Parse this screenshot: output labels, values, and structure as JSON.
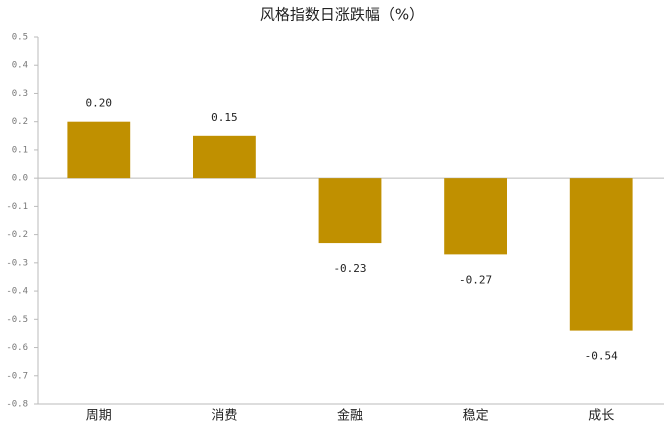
{
  "chart_data": {
    "type": "bar",
    "title": "风格指数日涨跌幅（%）",
    "categories": [
      "周期",
      "消费",
      "金融",
      "稳定",
      "成长"
    ],
    "values": [
      0.2,
      0.15,
      -0.23,
      -0.27,
      -0.54
    ],
    "value_labels": [
      "0.20",
      "0.15",
      "-0.23",
      "-0.27",
      "-0.54"
    ],
    "color": "#c09000",
    "ylim": [
      -0.8,
      0.5
    ],
    "yticks": [
      0.5,
      0.4,
      0.3,
      0.2,
      0.1,
      {
        "value": 0,
        "label": "0.0"
      },
      -0.1,
      -0.2,
      -0.3,
      -0.4,
      -0.5,
      -0.6,
      -0.7,
      -0.8
    ],
    "grid": false
  }
}
